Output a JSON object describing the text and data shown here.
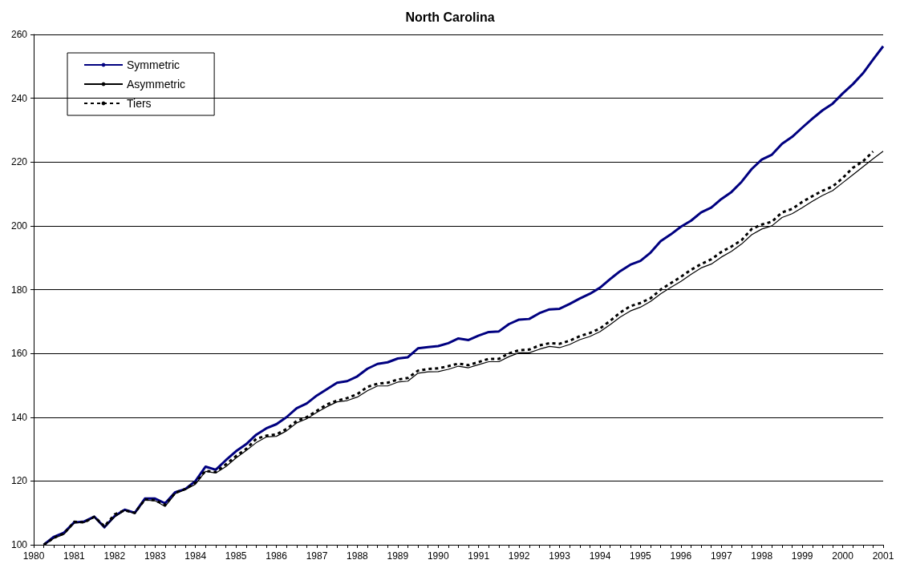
{
  "chart_data": {
    "type": "line",
    "title": "North Carolina",
    "x": [
      1980.25,
      1980.5,
      1980.75,
      1981,
      1981.25,
      1981.5,
      1981.75,
      1982,
      1982.25,
      1982.5,
      1982.75,
      1983,
      1983.25,
      1983.5,
      1983.75,
      1984,
      1984.25,
      1984.5,
      1984.75,
      1985,
      1985.25,
      1985.5,
      1985.75,
      1986,
      1986.25,
      1986.5,
      1986.75,
      1987,
      1987.25,
      1987.5,
      1987.75,
      1988,
      1988.25,
      1988.5,
      1988.75,
      1989,
      1989.25,
      1989.5,
      1989.75,
      1990,
      1990.25,
      1990.5,
      1990.75,
      1991,
      1991.25,
      1991.5,
      1991.75,
      1992,
      1992.25,
      1992.5,
      1992.75,
      1993,
      1993.25,
      1993.5,
      1993.75,
      1994,
      1994.25,
      1994.5,
      1994.75,
      1995,
      1995.25,
      1995.5,
      1995.75,
      1996,
      1996.25,
      1996.5,
      1996.75,
      1997,
      1997.25,
      1997.5,
      1997.75,
      1998,
      1998.25,
      1998.5,
      1998.75,
      1999,
      1999.25,
      1999.5,
      1999.75,
      2000,
      2000.25,
      2000.5,
      2000.75,
      2001
    ],
    "series": [
      {
        "name": "Symmetric",
        "color": "#000080",
        "line_style": "solid",
        "values": [
          100,
          102.5,
          103.8,
          107,
          107.3,
          108.8,
          105.5,
          109,
          111,
          110,
          114.5,
          114.5,
          113,
          116.5,
          117.5,
          120,
          124.5,
          123.5,
          126.5,
          129.3,
          131.5,
          134.5,
          136.5,
          137.8,
          140,
          142.8,
          144.3,
          146.8,
          148.8,
          150.8,
          151.3,
          152.8,
          155.2,
          156.7,
          157.2,
          158.4,
          158.8,
          161.6,
          162,
          162.3,
          163.2,
          164.7,
          164.2,
          165.6,
          166.7,
          166.9,
          169.2,
          170.6,
          170.8,
          172.6,
          173.8,
          174,
          175.5,
          177.2,
          178.7,
          180.6,
          183.3,
          185.8,
          187.8,
          189,
          191.6,
          195.2,
          197.3,
          199.7,
          201.6,
          204.2,
          205.7,
          208.4,
          210.6,
          213.8,
          217.8,
          220.8,
          222.3,
          225.7,
          227.9,
          230.8,
          233.6,
          236.2,
          238.3,
          241.5,
          244.4,
          247.8,
          252.1,
          256.3
        ]
      },
      {
        "name": "Asymmetric",
        "color": "#000000",
        "line_style": "solid",
        "values": [
          100,
          102,
          103.3,
          106.8,
          107,
          108.6,
          105.5,
          108.7,
          110.8,
          109.8,
          114,
          113.8,
          112,
          116,
          117.3,
          119,
          123,
          122.5,
          124.5,
          127.2,
          129.5,
          132,
          133.8,
          134,
          135.7,
          138.2,
          139.5,
          141.5,
          143.3,
          144.8,
          145.2,
          146.3,
          148.3,
          149.8,
          149.8,
          151,
          151.3,
          153.8,
          154.2,
          154.3,
          155,
          156,
          155.5,
          156.5,
          157.4,
          157.4,
          159,
          160.2,
          160.2,
          161.3,
          162.2,
          161.8,
          162.8,
          164.3,
          165.3,
          166.8,
          169,
          171.4,
          173.3,
          174.5,
          176.3,
          178.7,
          180.7,
          182.6,
          184.8,
          186.8,
          188,
          190.2,
          192,
          194.3,
          197.2,
          199,
          200,
          202.6,
          203.8,
          205.7,
          207.7,
          209.5,
          211,
          213.5,
          216,
          218.5,
          221,
          223.4
        ]
      },
      {
        "name": "Tiers",
        "color": "#000000",
        "line_style": "dashed",
        "values": [
          100,
          102.2,
          103.5,
          107.2,
          107,
          108.8,
          105.8,
          109.5,
          110.8,
          110,
          114.2,
          114,
          112.5,
          116.3,
          117.5,
          119.5,
          123.2,
          122.8,
          125.2,
          127.8,
          130,
          133.2,
          134.2,
          134.6,
          136.3,
          138.8,
          140,
          142,
          144,
          145.2,
          146,
          147.2,
          149.5,
          150.5,
          150.8,
          151.8,
          152.3,
          154.6,
          155.1,
          155.3,
          156,
          156.8,
          156.3,
          157.3,
          158.3,
          158.3,
          160,
          161,
          161.2,
          162.5,
          163.2,
          163,
          164,
          165.4,
          166.4,
          167.8,
          170.2,
          172.8,
          174.8,
          175.8,
          177.3,
          180,
          182,
          184,
          186.2,
          188,
          189.5,
          191.8,
          193.5,
          195.5,
          199,
          200.4,
          201.3,
          204.2,
          205.3,
          207.5,
          209.3,
          211,
          212.3,
          215,
          218.2,
          220.2,
          223.3,
          null
        ]
      }
    ],
    "xlim": [
      1980,
      2001
    ],
    "xticks": [
      1980,
      1981,
      1982,
      1983,
      1984,
      1985,
      1986,
      1987,
      1988,
      1989,
      1990,
      1991,
      1992,
      1993,
      1994,
      1995,
      1996,
      1997,
      1998,
      1999,
      2000,
      2001
    ],
    "ylim": [
      100,
      260
    ],
    "yticks": [
      100,
      120,
      140,
      160,
      180,
      200,
      220,
      240,
      260
    ],
    "grid": "y",
    "legend": "top left",
    "marker": "none"
  }
}
